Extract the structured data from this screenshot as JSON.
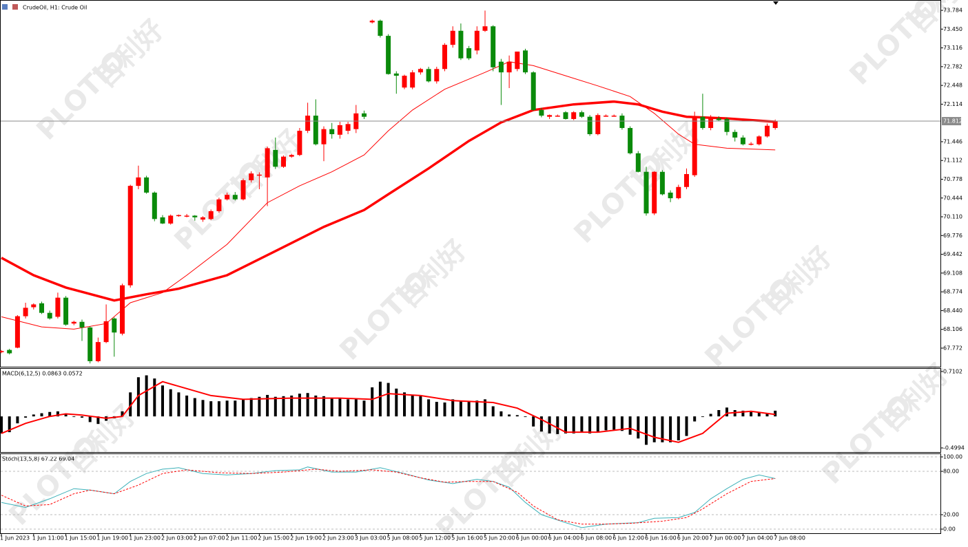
{
  "watermark": {
    "brand": "PLOTIO",
    "chinese": "百利好"
  },
  "chart_data": [
    {
      "type": "candlestick",
      "title": "CrudeOil, H1: Crude Oil",
      "categories": [
        "1 Jun 2023",
        null,
        null,
        null,
        "1 Jun 11:00",
        null,
        null,
        null,
        "1 Jun 15:00",
        null,
        null,
        null,
        "1 Jun 19:00",
        null,
        null,
        null,
        "1 Jun 23:00",
        null,
        null,
        null,
        "2 Jun 03:00",
        null,
        null,
        null,
        "2 Jun 07:00",
        null,
        null,
        null,
        "2 Jun 11:00",
        null,
        null,
        null,
        "2 Jun 15:00",
        null,
        null,
        null,
        "2 Jun 19:00",
        null,
        null,
        null,
        "2 Jun 23:00",
        null,
        null,
        null,
        "3 Jun 03:00",
        null,
        null,
        null,
        "5 Jun 08:00",
        null,
        null,
        null,
        "5 Jun 12:00",
        null,
        null,
        null,
        "5 Jun 16:00",
        null,
        null,
        null,
        "5 Jun 20:00",
        null,
        null,
        null,
        "6 Jun 00:00",
        null,
        null,
        null,
        "6 Jun 04:00",
        null,
        null,
        null,
        "6 Jun 08:00",
        null,
        null,
        null,
        "6 Jun 12:00",
        null,
        null,
        null,
        "6 Jun 16:00",
        null,
        null,
        null,
        "6 Jun 20:00",
        null,
        null,
        null,
        "7 Jun 00:00",
        null,
        null,
        null,
        "7 Jun 04:00",
        null,
        null,
        null,
        "7 Jun 08:00"
      ],
      "ohlc": [
        [
          67.7,
          67.74,
          67.68,
          67.72
        ],
        [
          67.74,
          67.76,
          67.66,
          67.68
        ],
        [
          67.78,
          68.36,
          67.77,
          68.34
        ],
        [
          68.34,
          68.58,
          68.3,
          68.49
        ],
        [
          68.5,
          68.57,
          68.46,
          68.55
        ],
        [
          68.57,
          68.6,
          68.38,
          68.4
        ],
        [
          68.4,
          68.44,
          68.28,
          68.3
        ],
        [
          68.33,
          68.76,
          68.3,
          68.67
        ],
        [
          68.67,
          68.7,
          68.17,
          68.19
        ],
        [
          68.21,
          68.26,
          68.18,
          68.24
        ],
        [
          68.24,
          68.28,
          67.9,
          68.14
        ],
        [
          68.14,
          68.16,
          67.5,
          67.54
        ],
        [
          67.54,
          67.96,
          67.52,
          67.88
        ],
        [
          67.88,
          68.55,
          67.86,
          68.25
        ],
        [
          68.3,
          68.32,
          67.62,
          68.05
        ],
        [
          68.03,
          68.92,
          68.0,
          68.89
        ],
        [
          68.89,
          70.68,
          68.85,
          70.66
        ],
        [
          70.66,
          71.02,
          70.6,
          70.81
        ],
        [
          70.81,
          70.84,
          70.52,
          70.54
        ],
        [
          70.54,
          70.56,
          70.03,
          70.07
        ],
        [
          70.1,
          70.14,
          69.98,
          69.99
        ],
        [
          69.99,
          70.15,
          69.97,
          70.13
        ],
        [
          70.13,
          70.15,
          70.11,
          70.14
        ],
        [
          70.13,
          70.16,
          70.1,
          70.13
        ],
        [
          70.13,
          70.14,
          70.04,
          70.1
        ],
        [
          70.06,
          70.12,
          70.02,
          70.1
        ],
        [
          70.07,
          70.24,
          70.05,
          70.21
        ],
        [
          70.21,
          70.45,
          70.18,
          70.42
        ],
        [
          70.42,
          70.54,
          70.4,
          70.5
        ],
        [
          70.5,
          70.55,
          70.4,
          70.42
        ],
        [
          70.42,
          70.79,
          70.4,
          70.76
        ],
        [
          70.76,
          70.92,
          70.72,
          70.88
        ],
        [
          70.85,
          70.9,
          70.6,
          70.86
        ],
        [
          70.81,
          71.36,
          70.3,
          71.33
        ],
        [
          71.3,
          71.52,
          70.96,
          71.0
        ],
        [
          71.0,
          71.2,
          70.98,
          71.18
        ],
        [
          71.18,
          71.23,
          71.16,
          71.21
        ],
        [
          71.21,
          71.69,
          71.19,
          71.64
        ],
        [
          71.64,
          72.14,
          71.6,
          71.91
        ],
        [
          71.91,
          72.2,
          71.38,
          71.4
        ],
        [
          71.4,
          71.72,
          71.1,
          71.67
        ],
        [
          71.67,
          71.78,
          71.5,
          71.58
        ],
        [
          71.57,
          71.8,
          71.5,
          71.74
        ],
        [
          71.64,
          71.8,
          71.58,
          71.76
        ],
        [
          71.67,
          72.1,
          71.6,
          71.95
        ],
        [
          71.95,
          72.0,
          71.85,
          71.89
        ],
        [
          73.57,
          73.62,
          73.55,
          73.6
        ],
        [
          73.6,
          73.62,
          73.3,
          73.33
        ],
        [
          73.33,
          73.36,
          72.64,
          72.65
        ],
        [
          72.66,
          72.7,
          72.3,
          72.62
        ],
        [
          72.41,
          72.64,
          72.38,
          72.62
        ],
        [
          72.41,
          72.72,
          72.38,
          72.68
        ],
        [
          72.68,
          72.76,
          72.64,
          72.74
        ],
        [
          72.74,
          72.78,
          72.5,
          72.52
        ],
        [
          72.52,
          72.78,
          72.48,
          72.74
        ],
        [
          72.74,
          73.2,
          72.7,
          73.17
        ],
        [
          73.17,
          73.5,
          73.12,
          73.42
        ],
        [
          73.42,
          73.55,
          72.9,
          72.93
        ],
        [
          73.11,
          73.15,
          72.9,
          72.93
        ],
        [
          73.07,
          73.5,
          73.0,
          73.42
        ],
        [
          73.42,
          73.78,
          73.4,
          73.5
        ],
        [
          73.5,
          73.52,
          72.7,
          72.77
        ],
        [
          72.87,
          72.92,
          72.1,
          72.68
        ],
        [
          72.68,
          72.98,
          72.4,
          72.87
        ],
        [
          72.74,
          73.05,
          72.7,
          73.05
        ],
        [
          73.07,
          73.1,
          72.65,
          72.68
        ],
        [
          72.68,
          72.7,
          72.0,
          72.01
        ],
        [
          72.01,
          72.05,
          71.88,
          71.91
        ],
        [
          71.89,
          71.93,
          71.85,
          71.92
        ],
        [
          71.91,
          71.93,
          71.89,
          71.91
        ],
        [
          71.97,
          71.99,
          71.84,
          71.85
        ],
        [
          71.85,
          71.99,
          71.83,
          71.97
        ],
        [
          71.97,
          72.0,
          71.87,
          71.89
        ],
        [
          71.89,
          71.92,
          71.55,
          71.58
        ],
        [
          71.58,
          71.95,
          71.56,
          71.92
        ],
        [
          71.91,
          71.93,
          71.89,
          71.91
        ],
        [
          71.91,
          71.93,
          71.89,
          71.91
        ],
        [
          71.91,
          71.95,
          71.66,
          71.69
        ],
        [
          71.69,
          71.72,
          71.22,
          71.24
        ],
        [
          71.24,
          71.28,
          70.9,
          70.91
        ],
        [
          70.91,
          71.0,
          70.13,
          70.17
        ],
        [
          70.17,
          70.92,
          70.14,
          70.91
        ],
        [
          70.91,
          70.94,
          70.49,
          70.51
        ],
        [
          70.54,
          70.58,
          70.37,
          70.44
        ],
        [
          70.44,
          70.68,
          70.42,
          70.64
        ],
        [
          70.64,
          70.97,
          70.6,
          70.87
        ],
        [
          70.85,
          71.98,
          70.82,
          71.89
        ],
        [
          71.89,
          72.3,
          71.66,
          71.69
        ],
        [
          71.69,
          71.92,
          71.65,
          71.86
        ],
        [
          71.86,
          71.9,
          71.81,
          71.83
        ],
        [
          71.85,
          71.88,
          71.56,
          71.62
        ],
        [
          71.62,
          71.66,
          71.45,
          71.52
        ],
        [
          71.52,
          71.56,
          71.38,
          71.4
        ],
        [
          71.41,
          71.44,
          71.38,
          71.41
        ],
        [
          71.4,
          71.56,
          71.38,
          71.54
        ],
        [
          71.54,
          71.77,
          71.52,
          71.73
        ],
        [
          71.69,
          71.84,
          71.66,
          71.81
        ]
      ],
      "up_color": "#ff0000",
      "down_color": "#0a8a0a",
      "overlays": [
        {
          "color": "#ff0000",
          "x": [
            0,
            4,
            8,
            14,
            18,
            22,
            28,
            34,
            40,
            45,
            48,
            53,
            58,
            62,
            66,
            71,
            76,
            79,
            82,
            85,
            90,
            96
          ],
          "values": [
            69.38,
            69.07,
            68.85,
            68.62,
            68.73,
            68.83,
            69.07,
            69.5,
            69.93,
            70.23,
            70.51,
            70.97,
            71.46,
            71.79,
            72.01,
            72.11,
            72.16,
            72.11,
            71.98,
            71.89,
            71.86,
            71.8
          ]
        },
        {
          "color": "#ff0000",
          "x": [
            0,
            5,
            9,
            13,
            16,
            20,
            23,
            28,
            33,
            37,
            41,
            45,
            48,
            51,
            55,
            60,
            63,
            66,
            70,
            74,
            78,
            81,
            84,
            86,
            90,
            96
          ],
          "values": [
            68.33,
            68.15,
            68.11,
            68.21,
            68.58,
            68.76,
            69.07,
            69.62,
            70.36,
            70.66,
            70.91,
            71.21,
            71.64,
            72.01,
            72.38,
            72.68,
            72.87,
            72.8,
            72.62,
            72.44,
            72.25,
            71.95,
            71.58,
            71.4,
            71.33,
            71.3
          ]
        }
      ],
      "last_price": 71.812,
      "ylim": [
        67.441,
        73.968
      ],
      "yticks": [
        73.784,
        {
          "value": 73.45,
          "label": "73.450"
        },
        73.116,
        72.782,
        72.448,
        72.114,
        71.446,
        71.112,
        70.778,
        70.444,
        {
          "value": 70.11,
          "label": "70.110"
        },
        69.776,
        69.442,
        69.108,
        68.774,
        {
          "value": 68.44,
          "label": "68.440"
        },
        68.106,
        67.772
      ]
    },
    {
      "type": "macd",
      "title": "MACD(6,12,5) 0.0863 0.0572",
      "color": "#000000",
      "values": [
        -0.27,
        -0.25,
        -0.11,
        -0.02,
        0.03,
        0.05,
        0.07,
        0.08,
        0.04,
        -0.01,
        -0.02,
        -0.09,
        -0.12,
        -0.07,
        -0.03,
        0.08,
        0.38,
        0.62,
        0.65,
        0.6,
        0.49,
        0.43,
        0.38,
        0.33,
        0.29,
        0.26,
        0.24,
        0.24,
        0.25,
        0.25,
        0.27,
        0.29,
        0.31,
        0.34,
        0.31,
        0.32,
        0.33,
        0.36,
        0.37,
        0.33,
        0.32,
        0.29,
        0.28,
        0.27,
        0.27,
        0.25,
        0.46,
        0.55,
        0.53,
        0.44,
        0.38,
        0.34,
        0.32,
        0.27,
        0.23,
        0.22,
        0.27,
        0.25,
        0.23,
        0.25,
        0.27,
        0.16,
        0.08,
        0.03,
        0.02,
        -0.01,
        -0.16,
        -0.24,
        -0.27,
        -0.28,
        -0.27,
        -0.27,
        -0.25,
        -0.27,
        -0.24,
        -0.22,
        -0.21,
        -0.23,
        -0.29,
        -0.35,
        -0.45,
        -0.41,
        -0.41,
        -0.41,
        -0.38,
        -0.31,
        -0.08,
        -0.01,
        0.04,
        0.1,
        0.14,
        0.1,
        0.09,
        0.07,
        0.07,
        0.05,
        0.09
      ],
      "signal": {
        "color": "#ff0000",
        "x": [
          0,
          3,
          6,
          8,
          10,
          13,
          15,
          17,
          20,
          23,
          26,
          30,
          36,
          42,
          46,
          48,
          52,
          56,
          61,
          64,
          67,
          70,
          74,
          78,
          81,
          84,
          87,
          90,
          93,
          96
        ],
        "values": [
          -0.27,
          -0.11,
          0.0,
          0.04,
          0.02,
          -0.03,
          0.0,
          0.33,
          0.55,
          0.44,
          0.33,
          0.27,
          0.29,
          0.29,
          0.27,
          0.36,
          0.33,
          0.25,
          0.22,
          0.13,
          -0.05,
          -0.25,
          -0.25,
          -0.19,
          -0.33,
          -0.41,
          -0.27,
          0.05,
          0.08,
          0.03
        ]
      },
      "ylim": [
        -0.5648,
        0.7647
      ],
      "yticks": [
        0.7102,
        -0.4994
      ]
    },
    {
      "type": "stochastic",
      "title": "Stoch(13,5,8) 67.22 69.04",
      "series": [
        {
          "color": "#3ab0b8",
          "dashed": false,
          "x": [
            0,
            3,
            6,
            9,
            11,
            14,
            16,
            18,
            20,
            22,
            25,
            28,
            31,
            34,
            37,
            38,
            41,
            44,
            47,
            50,
            53,
            56,
            59,
            61,
            63,
            65,
            67,
            70,
            72,
            75,
            79,
            81,
            84,
            86,
            88,
            90,
            92,
            94,
            96
          ],
          "values": [
            37,
            30,
            42,
            56,
            54,
            49,
            66,
            77,
            83,
            85,
            77,
            75,
            77,
            81,
            82,
            86,
            79,
            79,
            85,
            77,
            68,
            63,
            69,
            66,
            58,
            37,
            20,
            9,
            2,
            7,
            9,
            15,
            16,
            23,
            42,
            56,
            69,
            75,
            70
          ]
        },
        {
          "color": "#ff0000",
          "dashed": true,
          "x": [
            0,
            3,
            6,
            9,
            11,
            14,
            17,
            20,
            23,
            27,
            31,
            35,
            39,
            42,
            46,
            49,
            52,
            55,
            58,
            61,
            64,
            66,
            69,
            72,
            75,
            78,
            82,
            85,
            87,
            90,
            93,
            96
          ],
          "values": [
            47,
            32,
            34,
            49,
            54,
            49,
            61,
            77,
            82,
            78,
            77,
            79,
            83,
            80,
            82,
            79,
            71,
            65,
            66,
            66,
            51,
            32,
            13,
            7,
            7,
            8,
            11,
            16,
            28,
            49,
            66,
            70
          ]
        }
      ],
      "ylim": [
        -5.7,
        104.8
      ],
      "yticks": [
        {
          "value": 100,
          "label": "100.00"
        },
        {
          "value": 80,
          "label": "80.00"
        },
        {
          "value": 20,
          "label": "20.00"
        },
        {
          "value": 0,
          "label": "0.00"
        }
      ]
    }
  ]
}
